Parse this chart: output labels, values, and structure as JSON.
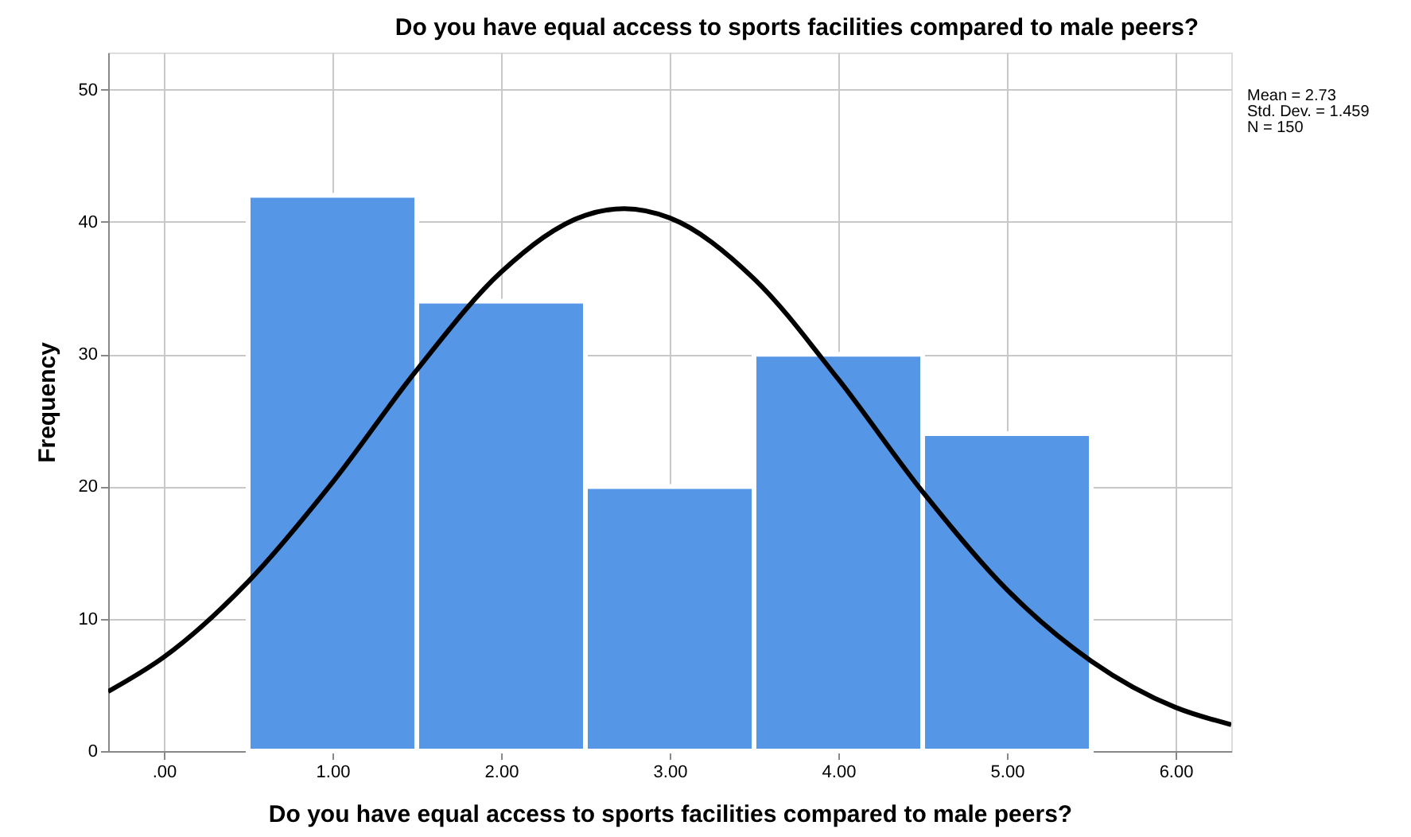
{
  "chart_data": {
    "type": "histogram",
    "title": "Do you have equal access to sports facilities compared to male peers?",
    "xlabel": "Do you have equal access to sports facilities compared to male peers?",
    "ylabel": "Frequency",
    "bins": [
      0.5,
      1.5,
      2.5,
      3.5,
      4.5,
      5.5
    ],
    "values": [
      42,
      34,
      20,
      30,
      24
    ],
    "color": "#5596e6",
    "series": [
      {
        "type": "line",
        "color": "#000000",
        "x": [
          -0.33,
          0,
          0.5,
          1,
          1.5,
          2,
          2.5,
          2.73,
          3,
          3.5,
          4,
          4.5,
          5,
          5.5,
          6,
          6.33
        ],
        "values": [
          4.5,
          7.1,
          12.8,
          20.3,
          28.8,
          36.2,
          40.5,
          41.0,
          40.3,
          35.7,
          28.1,
          19.6,
          12.2,
          6.8,
          3.3,
          2.0
        ]
      }
    ],
    "xlim": [
      -0.33,
      6.33
    ],
    "ylim": [
      0,
      52.8
    ],
    "xticks": [
      {
        "value": 0,
        "label": ".00"
      },
      {
        "value": 1,
        "label": "1.00"
      },
      {
        "value": 2,
        "label": "2.00"
      },
      {
        "value": 3,
        "label": "3.00"
      },
      {
        "value": 4,
        "label": "4.00"
      },
      {
        "value": 5,
        "label": "5.00"
      },
      {
        "value": 6,
        "label": "6.00"
      }
    ],
    "yticks": [
      0,
      10,
      20,
      30,
      40,
      50
    ],
    "grid": true,
    "annotations": [
      "Mean = 2.73",
      "Std. Dev. = 1.459",
      "N = 150"
    ]
  }
}
